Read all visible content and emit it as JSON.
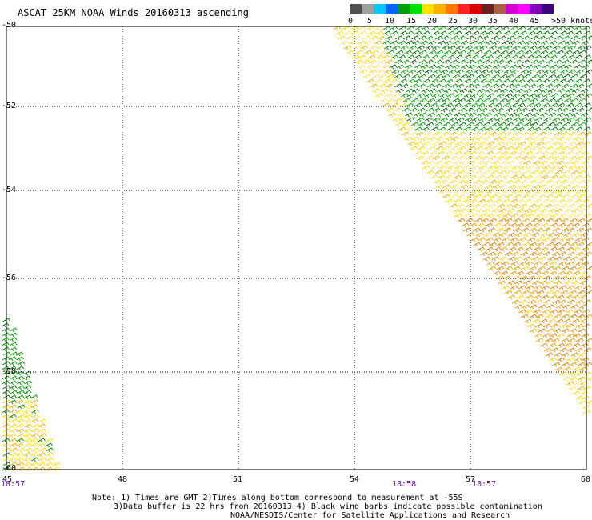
{
  "header": {
    "title": "ASCAT 25KM NOAA Winds 20160313 ascending"
  },
  "colorbar": {
    "colors": [
      "#505050",
      "#a0a0a0",
      "#00c8ff",
      "#0064ff",
      "#00a000",
      "#00e000",
      "#ffe000",
      "#ffb000",
      "#ff7800",
      "#ff2020",
      "#d80000",
      "#6a1f1f",
      "#a86040",
      "#d000d0",
      "#ff00ff",
      "#8000c0",
      "#400080"
    ],
    "tick_labels": [
      "0",
      "5",
      "10",
      "15",
      "20",
      "25",
      "30",
      "35",
      "40",
      "45",
      ">50 knots"
    ]
  },
  "axes": {
    "y_labels": [
      "-50",
      "-52",
      "-54",
      "-56",
      "-58",
      "-60"
    ],
    "x_labels": [
      "45",
      "48",
      "51",
      "54",
      "57",
      "60"
    ]
  },
  "time_labels": [
    "18:57",
    "18:58",
    "18:57"
  ],
  "notes": {
    "line1": "Note: 1) Times are GMT 2)Times along bottom correspond to measurement at -55S",
    "line2": "3)Data buffer is 22 hrs from 20160313 4) Black wind barbs indicate possible contamination",
    "line3": "NOAA/NESDIS/Center for Satellite Applications and Research"
  }
}
